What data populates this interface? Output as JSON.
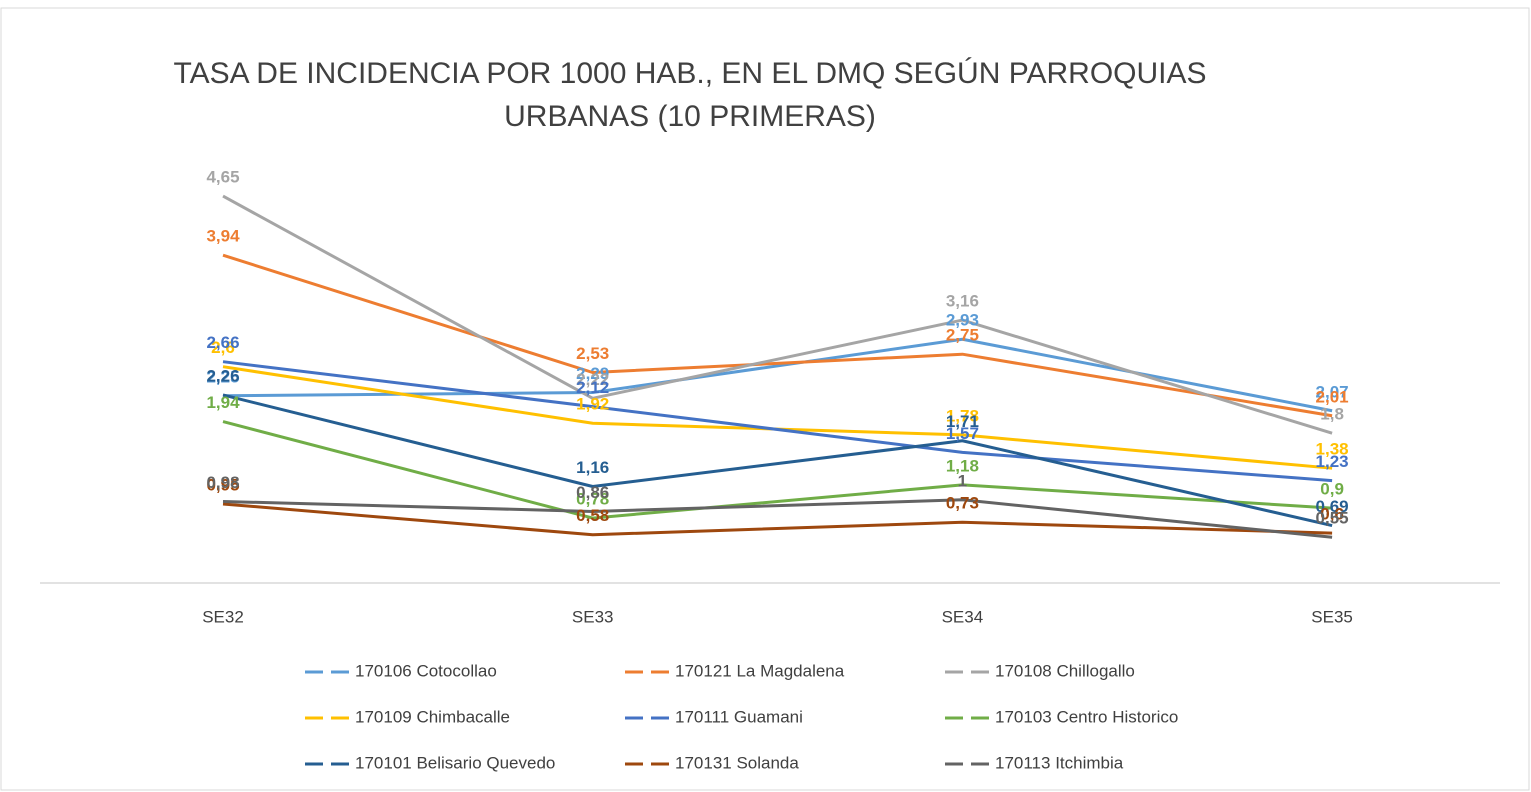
{
  "chart_data": {
    "type": "line",
    "title": [
      "TASA DE INCIDENCIA POR 1000 HAB., EN EL DMQ SEGÚN PARROQUIAS",
      "URBANAS (10 PRIMERAS)"
    ],
    "categories": [
      "SE32",
      "SE33",
      "SE34",
      "SE35"
    ],
    "ylim": [
      0,
      5
    ],
    "series": [
      {
        "name": "170106 Cotocollao",
        "color": "#5B9BD5",
        "values": [
          2.25,
          2.29,
          2.93,
          2.07
        ],
        "value_labels": [
          "2,25",
          "2,29",
          "2,93",
          "2,07"
        ]
      },
      {
        "name": "170121 La Magdalena",
        "color": "#ED7D31",
        "values": [
          3.94,
          2.53,
          2.75,
          2.01
        ],
        "value_labels": [
          "3,94",
          "2,53",
          "2,75",
          "2,01"
        ]
      },
      {
        "name": "170108 Chillogallo",
        "color": "#A5A5A5",
        "values": [
          4.65,
          2.22,
          3.16,
          1.8
        ],
        "value_labels": [
          "4,65",
          "2,22",
          "3,16",
          "1,8"
        ]
      },
      {
        "name": "170109 Chimbacalle",
        "color": "#FFC000",
        "values": [
          2.6,
          1.92,
          1.78,
          1.38
        ],
        "value_labels": [
          "2,6",
          "1,92",
          "1,78",
          "1,38"
        ]
      },
      {
        "name": "170111 Guamani",
        "color": "#4472C4",
        "values": [
          2.66,
          2.12,
          1.57,
          1.23
        ],
        "value_labels": [
          "2,66",
          "2,12",
          "1,57",
          "1,23"
        ]
      },
      {
        "name": "170103 Centro Historico",
        "color": "#70AD47",
        "values": [
          1.94,
          0.78,
          1.18,
          0.9
        ],
        "value_labels": [
          "1,94",
          "0,78",
          "1,18",
          "0,9"
        ]
      },
      {
        "name": "170101 Belisario Quevedo",
        "color": "#255E91",
        "values": [
          2.26,
          1.16,
          1.71,
          0.69
        ],
        "value_labels": [
          "2,26",
          "1,16",
          "1,71",
          "0,69"
        ]
      },
      {
        "name": "170131 Solanda",
        "color": "#9E480E",
        "values": [
          0.95,
          0.58,
          0.73,
          0.6
        ],
        "value_labels": [
          "0,95",
          "0,58",
          "0,73",
          "0,6"
        ]
      },
      {
        "name": "170113 Itchimbia",
        "color": "#636363",
        "values": [
          0.98,
          0.86,
          1,
          0.55
        ],
        "value_labels": [
          "0,98",
          "0,86",
          "1",
          "0,55"
        ]
      }
    ]
  }
}
